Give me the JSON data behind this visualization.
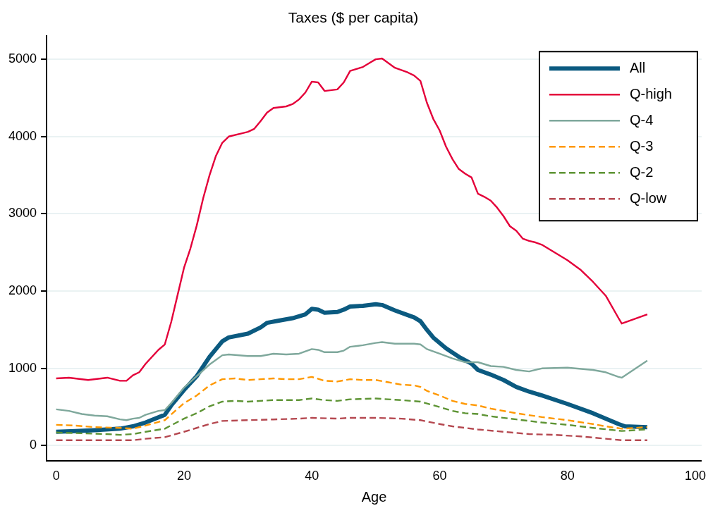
{
  "chart_data": {
    "type": "line",
    "title": "Taxes ($ per capita)",
    "xlabel": "Age",
    "xlim": [
      -1.5,
      101
    ],
    "xticks": [
      0,
      20,
      40,
      60,
      80,
      100
    ],
    "ylim": [
      -200,
      5300
    ],
    "yticks": [
      0,
      1000,
      2000,
      3000,
      4000,
      5000
    ],
    "grid": "y",
    "legend": "top right",
    "marker": "none",
    "series": [
      {
        "name": "All",
        "color": "#0b5a80",
        "line_style": "solid",
        "x": [
          0,
          3,
          6,
          10,
          12,
          14,
          17,
          18,
          20,
          22,
          24,
          26,
          27,
          30,
          32,
          33,
          35,
          37,
          39,
          40,
          41,
          42,
          44,
          45,
          46,
          48,
          50,
          51,
          53,
          55,
          56,
          57,
          58,
          59,
          61,
          63,
          65,
          66,
          68,
          70,
          72,
          74,
          76,
          80,
          84,
          88,
          89,
          92.5
        ],
        "values": [
          180,
          190,
          200,
          220,
          250,
          300,
          400,
          520,
          720,
          900,
          1150,
          1350,
          1400,
          1450,
          1530,
          1590,
          1620,
          1650,
          1700,
          1770,
          1760,
          1720,
          1730,
          1760,
          1800,
          1810,
          1830,
          1820,
          1750,
          1690,
          1660,
          1610,
          1500,
          1400,
          1260,
          1150,
          1060,
          980,
          920,
          850,
          760,
          700,
          650,
          540,
          420,
          280,
          250,
          240
        ]
      },
      {
        "name": "Q-high",
        "color": "#e4003a",
        "line_style": "solid",
        "x": [
          0,
          2,
          5,
          8,
          10,
          11,
          12,
          13,
          14,
          16,
          17,
          18,
          19,
          20,
          21,
          22,
          23,
          24,
          25,
          26,
          27,
          29,
          30,
          31,
          32,
          33,
          34,
          36,
          37,
          38,
          39,
          40,
          41,
          42,
          44,
          45,
          46,
          48,
          49,
          50,
          51,
          53,
          55,
          56,
          57,
          58,
          59,
          60,
          61,
          62,
          63,
          64,
          65,
          66,
          67,
          68,
          69,
          70,
          71,
          72,
          73,
          74,
          75,
          76,
          78,
          80,
          82,
          84,
          86,
          88,
          88.5,
          92.5
        ],
        "values": [
          870,
          880,
          850,
          880,
          840,
          840,
          910,
          950,
          1060,
          1240,
          1310,
          1600,
          1950,
          2300,
          2550,
          2850,
          3200,
          3500,
          3750,
          3920,
          4000,
          4040,
          4060,
          4100,
          4200,
          4310,
          4370,
          4390,
          4420,
          4480,
          4570,
          4710,
          4700,
          4590,
          4610,
          4700,
          4850,
          4900,
          4950,
          5000,
          5010,
          4890,
          4830,
          4790,
          4720,
          4440,
          4230,
          4080,
          3870,
          3710,
          3580,
          3520,
          3470,
          3260,
          3220,
          3170,
          3080,
          2970,
          2840,
          2780,
          2680,
          2650,
          2630,
          2600,
          2500,
          2400,
          2280,
          2120,
          1940,
          1650,
          1580,
          1700
        ]
      },
      {
        "name": "Q-4",
        "color": "#7fa89c",
        "line_style": "solid",
        "x": [
          0,
          2,
          4,
          6,
          8,
          10,
          11,
          12,
          13,
          14,
          16,
          17,
          18,
          20,
          22,
          24,
          26,
          27,
          30,
          32,
          34,
          36,
          38,
          40,
          41,
          42,
          44,
          45,
          46,
          48,
          50,
          51,
          53,
          56,
          57,
          58,
          60,
          62,
          64,
          66,
          68,
          70,
          72,
          74,
          76,
          80,
          84,
          86,
          88,
          88.5,
          92.5
        ],
        "values": [
          470,
          450,
          410,
          390,
          380,
          340,
          330,
          350,
          360,
          400,
          450,
          460,
          550,
          750,
          900,
          1050,
          1170,
          1180,
          1160,
          1160,
          1190,
          1180,
          1190,
          1250,
          1240,
          1210,
          1210,
          1230,
          1280,
          1300,
          1330,
          1340,
          1320,
          1320,
          1310,
          1250,
          1190,
          1130,
          1080,
          1080,
          1030,
          1020,
          980,
          960,
          1000,
          1010,
          980,
          950,
          890,
          880,
          1100
        ]
      },
      {
        "name": "Q-3",
        "color": "#ff9800",
        "line_style": "dashed",
        "x": [
          0,
          3,
          6,
          10,
          12,
          14,
          17,
          20,
          22,
          24,
          26,
          28,
          30,
          32,
          34,
          36,
          38,
          40,
          42,
          44,
          46,
          48,
          50,
          52,
          54,
          56,
          57,
          58,
          60,
          62,
          64,
          66,
          68,
          72,
          76,
          80,
          84,
          86,
          88.5,
          92.5
        ],
        "values": [
          270,
          260,
          240,
          230,
          220,
          260,
          330,
          550,
          650,
          780,
          860,
          870,
          850,
          860,
          870,
          860,
          860,
          890,
          840,
          830,
          860,
          850,
          850,
          820,
          790,
          780,
          760,
          710,
          650,
          580,
          540,
          520,
          480,
          420,
          370,
          330,
          280,
          250,
          220,
          240
        ]
      },
      {
        "name": "Q-2",
        "color": "#5e9435",
        "line_style": "dashed",
        "x": [
          0,
          4,
          8,
          10,
          12,
          14,
          17,
          20,
          22,
          24,
          26,
          28,
          30,
          34,
          38,
          40,
          42,
          44,
          46,
          50,
          54,
          57,
          60,
          62,
          64,
          66,
          68,
          72,
          76,
          80,
          84,
          88.5,
          92.5
        ],
        "values": [
          170,
          160,
          150,
          140,
          150,
          180,
          220,
          350,
          420,
          510,
          570,
          580,
          570,
          590,
          590,
          610,
          590,
          580,
          600,
          610,
          590,
          570,
          500,
          450,
          420,
          410,
          380,
          340,
          300,
          270,
          230,
          190,
          210
        ]
      },
      {
        "name": "Q-low",
        "color": "#b54850",
        "line_style": "dashed",
        "x": [
          0,
          4,
          8,
          10,
          12,
          14,
          17,
          20,
          22,
          24,
          26,
          30,
          34,
          38,
          40,
          44,
          46,
          50,
          54,
          57,
          60,
          62,
          64,
          66,
          70,
          74,
          78,
          82,
          86,
          88.5,
          92.5
        ],
        "values": [
          70,
          70,
          70,
          70,
          70,
          90,
          110,
          180,
          230,
          280,
          320,
          330,
          340,
          350,
          360,
          350,
          360,
          360,
          350,
          330,
          280,
          250,
          230,
          210,
          180,
          150,
          140,
          120,
          90,
          70,
          70
        ]
      }
    ]
  }
}
